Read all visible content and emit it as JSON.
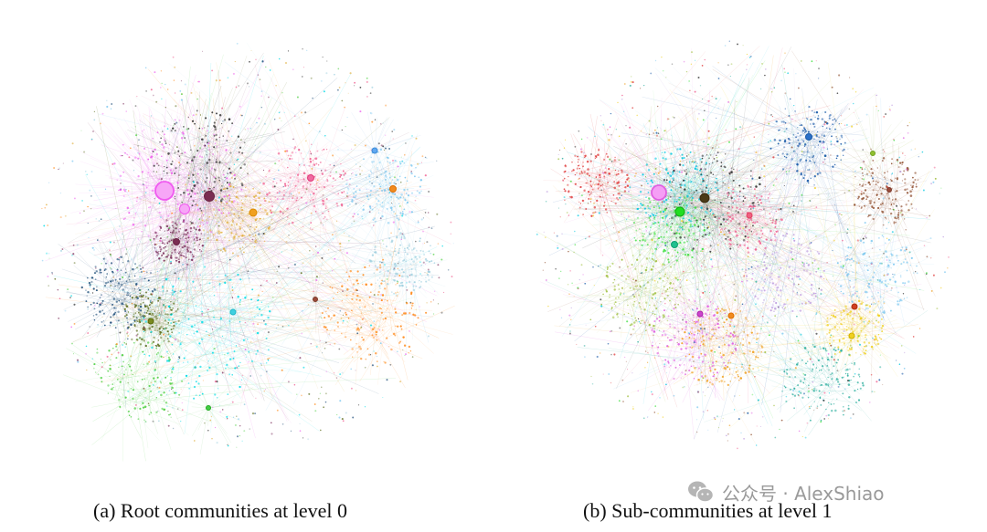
{
  "panels": [
    {
      "caption": "(a) Root communities at level 0",
      "hubs": [
        {
          "color": "#f05af0",
          "fill": "#f7a6f7"
        },
        {
          "color": "#f05af0",
          "fill": "#f7a6f7"
        },
        {
          "color": "#6b2545",
          "fill": "#7a2d52"
        },
        {
          "color": "#6b2545",
          "fill": "#7a2d52"
        },
        {
          "color": "#d98a00",
          "fill": "#f0a020"
        },
        {
          "color": "#e03a7a",
          "fill": "#f06aa0"
        },
        {
          "color": "#e07000",
          "fill": "#f08a20"
        },
        {
          "color": "#3a8ad8",
          "fill": "#60a8f0"
        },
        {
          "color": "#1fb8c8",
          "fill": "#40d0e0"
        },
        {
          "color": "#5a6a10",
          "fill": "#7a8a20"
        },
        {
          "color": "#22aa22",
          "fill": "#44cc44"
        },
        {
          "color": "#7a3a2a",
          "fill": "#9a4a3a"
        }
      ],
      "communities": [
        {
          "color": "#ee66ee"
        },
        {
          "color": "#00dbe6"
        },
        {
          "color": "#ff8a1a"
        },
        {
          "color": "#55d14a"
        },
        {
          "color": "#5a6b18"
        },
        {
          "color": "#f06292"
        },
        {
          "color": "#7b2d5a"
        },
        {
          "color": "#e0b040"
        },
        {
          "color": "#7ec8f0"
        },
        {
          "color": "#1f4f7a"
        },
        {
          "color": "#a0d0e0"
        },
        {
          "color": "#333333"
        }
      ]
    },
    {
      "caption": "(b) Sub-communities at level 1",
      "hubs": [
        {
          "color": "#e060e0",
          "fill": "#f59ef5"
        },
        {
          "color": "#3a2a10",
          "fill": "#4a3a18"
        },
        {
          "color": "#10b010",
          "fill": "#22dd22"
        },
        {
          "color": "#10a070",
          "fill": "#20c090"
        },
        {
          "color": "#1a5aa8",
          "fill": "#2a70c8"
        },
        {
          "color": "#d0b000",
          "fill": "#f0d020"
        },
        {
          "color": "#b03010",
          "fill": "#d04020"
        },
        {
          "color": "#aa22aa",
          "fill": "#cc44cc"
        },
        {
          "color": "#e04060",
          "fill": "#f06080"
        },
        {
          "color": "#e07000",
          "fill": "#f08a20"
        },
        {
          "color": "#70a020",
          "fill": "#90c030"
        },
        {
          "color": "#7a3a2a",
          "fill": "#9a4a3a"
        }
      ],
      "communities": [
        {
          "color": "#00c8e0"
        },
        {
          "color": "#40e040"
        },
        {
          "color": "#e060e0"
        },
        {
          "color": "#f0a020"
        },
        {
          "color": "#1a5aa8"
        },
        {
          "color": "#a0c040"
        },
        {
          "color": "#f06090"
        },
        {
          "color": "#7ec8f0"
        },
        {
          "color": "#f0d020"
        },
        {
          "color": "#905030"
        },
        {
          "color": "#333333"
        },
        {
          "color": "#30b0a0"
        },
        {
          "color": "#c0a0e0"
        },
        {
          "color": "#e04040"
        }
      ]
    }
  ],
  "watermark": {
    "text": "公众号 · AlexShiao",
    "color": "#9a9a9a"
  }
}
